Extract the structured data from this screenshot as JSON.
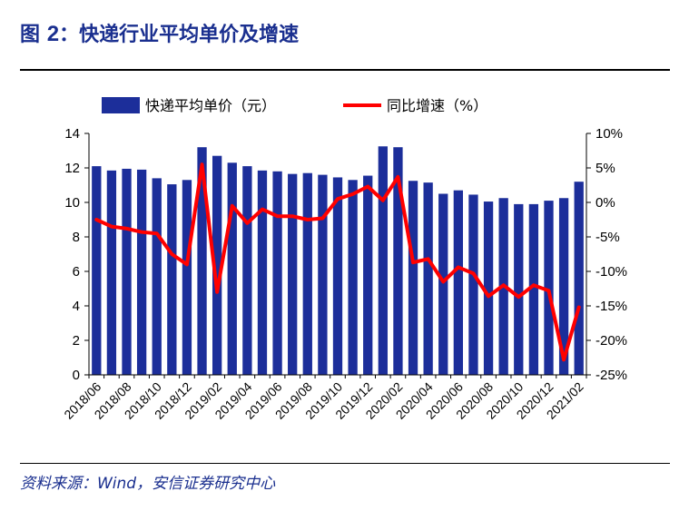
{
  "header": {
    "figure_label": "图",
    "figure_number": "2",
    "separator": "：",
    "title_text": "快递行业平均单价及增速"
  },
  "source": {
    "text": "资料来源：Wind，安信证券研究中心"
  },
  "colors": {
    "bar": "#1c2e9a",
    "line": "#ff0000",
    "title": "#1a2f8f",
    "axis": "#000000"
  },
  "chart_data": {
    "type": "bar+line",
    "title": "快递行业平均单价及增速",
    "categories": [
      "2018/06",
      "2018/07",
      "2018/08",
      "2018/09",
      "2018/10",
      "2018/11",
      "2018/12",
      "2019/01",
      "2019/02",
      "2019/03",
      "2019/04",
      "2019/05",
      "2019/06",
      "2019/07",
      "2019/08",
      "2019/09",
      "2019/10",
      "2019/11",
      "2019/12",
      "2020/01",
      "2020/02",
      "2020/03",
      "2020/04",
      "2020/05",
      "2020/06",
      "2020/07",
      "2020/08",
      "2020/09",
      "2020/10",
      "2020/11",
      "2020/12",
      "2021/01",
      "2021/02"
    ],
    "x_tick_labels": [
      "2018/06",
      "2018/08",
      "2018/10",
      "2018/12",
      "2019/02",
      "2019/04",
      "2019/06",
      "2019/08",
      "2019/10",
      "2019/12",
      "2020/02",
      "2020/04",
      "2020/06",
      "2020/08",
      "2020/10",
      "2020/12",
      "2021/02"
    ],
    "series": [
      {
        "name": "快递平均单价（元）",
        "type": "bar",
        "axis": "left",
        "values": [
          12.1,
          11.85,
          11.95,
          11.9,
          11.4,
          11.05,
          11.3,
          13.2,
          12.7,
          12.3,
          12.1,
          11.85,
          11.8,
          11.65,
          11.7,
          11.6,
          11.45,
          11.3,
          11.55,
          13.25,
          13.2,
          11.25,
          11.15,
          10.5,
          10.7,
          10.45,
          10.05,
          10.25,
          9.9,
          9.9,
          10.1,
          10.25,
          11.2
        ]
      },
      {
        "name": "同比增速（%）",
        "type": "line",
        "axis": "right",
        "values": [
          -2.5,
          -3.5,
          -3.8,
          -4.3,
          -4.5,
          -7.5,
          -9.0,
          5.5,
          -13.0,
          -0.5,
          -3.0,
          -1.0,
          -2.0,
          -2.0,
          -2.5,
          -2.3,
          0.5,
          1.2,
          2.3,
          0.3,
          3.7,
          -8.7,
          -8.2,
          -11.5,
          -9.4,
          -10.3,
          -13.6,
          -12.0,
          -13.7,
          -12.0,
          -12.8,
          -22.8,
          -15.2
        ]
      }
    ],
    "y_left": {
      "min": 0,
      "max": 14,
      "ticks": [
        0,
        2,
        4,
        6,
        8,
        10,
        12,
        14
      ],
      "tick_labels": [
        "0",
        "2",
        "4",
        "6",
        "8",
        "10",
        "12",
        "14"
      ]
    },
    "y_right": {
      "min": -25,
      "max": 10,
      "ticks": [
        -25,
        -20,
        -15,
        -10,
        -5,
        0,
        5,
        10
      ],
      "tick_labels": [
        "-25%",
        "-20%",
        "-15%",
        "-10%",
        "-5%",
        "0%",
        "5%",
        "10%"
      ]
    },
    "legend": {
      "position": "top-center",
      "items": [
        "快递平均单价（元）",
        "同比增速（%）"
      ]
    },
    "grid": false
  }
}
